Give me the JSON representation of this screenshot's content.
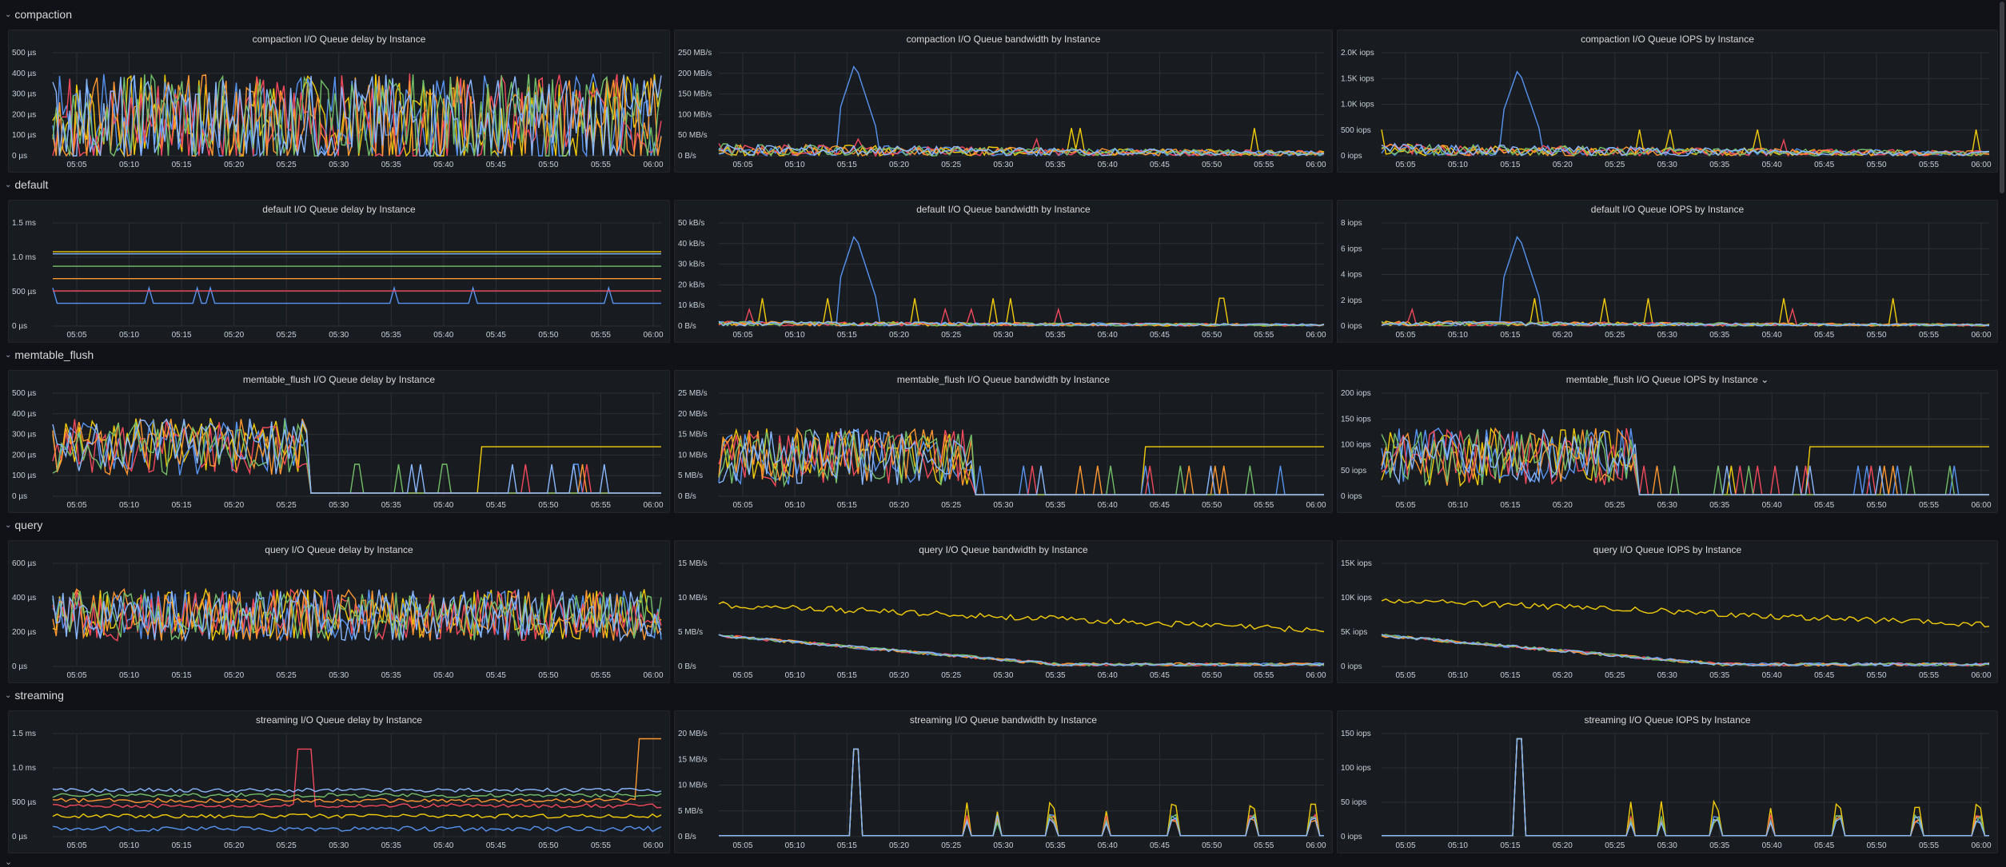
{
  "dashboard": {
    "colors": {
      "background": "#111217",
      "panel": "#181b1f",
      "grid": "#2c2f35",
      "axis_text": "#c7d0d9",
      "series": [
        "#f2cc0c",
        "#5794f2",
        "#f2495c",
        "#ff9830",
        "#73bf69",
        "#8ab8ff",
        "#b877d9",
        "#fade2a",
        "#37872d",
        "#c4162a"
      ]
    },
    "x_ticks": [
      "05:05",
      "05:10",
      "05:15",
      "05:20",
      "05:25",
      "05:30",
      "05:35",
      "05:40",
      "05:45",
      "05:50",
      "05:55",
      "06:00"
    ],
    "rows": [
      {
        "title": "compaction",
        "panels": [
          {
            "title": "compaction I/O Queue delay by Instance",
            "kind": "delay",
            "y_ticks": [
              "0 µs",
              "100 µs",
              "200 µs",
              "300 µs",
              "400 µs",
              "500 µs"
            ],
            "y_max": 500,
            "shape": "noisy",
            "level": 0.35,
            "amp": 0.9
          },
          {
            "title": "compaction I/O Queue bandwidth by Instance",
            "kind": "bandwidth",
            "y_ticks": [
              "0 B/s",
              "50 MB/s",
              "100 MB/s",
              "150 MB/s",
              "200 MB/s",
              "250 MB/s"
            ],
            "y_max": 250,
            "shape": "spiky",
            "level": 0.12,
            "amp": 0.9
          },
          {
            "title": "compaction I/O Queue IOPS by Instance",
            "kind": "iops",
            "y_ticks": [
              "0 iops",
              "500 iops",
              "1.0K iops",
              "1.5K iops",
              "2.0K iops"
            ],
            "y_max": 2000,
            "shape": "spiky",
            "level": 0.12,
            "amp": 0.85
          }
        ]
      },
      {
        "title": "default",
        "panels": [
          {
            "title": "default I/O Queue delay by Instance",
            "kind": "delay",
            "y_ticks": [
              "0 µs",
              "500 µs",
              "1.0 ms",
              "1.5 ms"
            ],
            "y_max": 1500,
            "shape": "flat",
            "level": 0.3,
            "amp": 0.5
          },
          {
            "title": "default I/O Queue bandwidth by Instance",
            "kind": "bandwidth",
            "y_ticks": [
              "0 B/s",
              "10 kB/s",
              "20 kB/s",
              "30 kB/s",
              "40 kB/s",
              "50 kB/s"
            ],
            "y_max": 50,
            "shape": "spiky",
            "level": 0.05,
            "amp": 0.9
          },
          {
            "title": "default I/O Queue IOPS by Instance",
            "kind": "iops",
            "y_ticks": [
              "0 iops",
              "2 iops",
              "4 iops",
              "6 iops",
              "8 iops"
            ],
            "y_max": 8,
            "shape": "spiky",
            "level": 0.05,
            "amp": 0.9
          }
        ]
      },
      {
        "title": "memtable_flush",
        "panels": [
          {
            "title": "memtable_flush I/O Queue delay by Instance",
            "kind": "delay",
            "y_ticks": [
              "0 µs",
              "100 µs",
              "200 µs",
              "300 µs",
              "400 µs",
              "500 µs"
            ],
            "y_max": 500,
            "shape": "burst",
            "level": 0.2,
            "amp": 0.8
          },
          {
            "title": "memtable_flush I/O Queue bandwidth by Instance",
            "kind": "bandwidth",
            "y_ticks": [
              "0 B/s",
              "5 MB/s",
              "10 MB/s",
              "15 MB/s",
              "20 MB/s",
              "25 MB/s"
            ],
            "y_max": 25,
            "shape": "burst",
            "level": 0.1,
            "amp": 0.8
          },
          {
            "title": "memtable_flush I/O Queue IOPS by Instance ⌄",
            "kind": "iops",
            "y_ticks": [
              "0 iops",
              "50 iops",
              "100 iops",
              "150 iops",
              "200 iops"
            ],
            "y_max": 200,
            "shape": "burst",
            "level": 0.1,
            "amp": 0.8
          }
        ]
      },
      {
        "title": "query",
        "panels": [
          {
            "title": "query I/O Queue delay by Instance",
            "kind": "delay",
            "y_ticks": [
              "0 µs",
              "200 µs",
              "400 µs",
              "600 µs"
            ],
            "y_max": 600,
            "shape": "dense",
            "level": 0.5,
            "amp": 0.5
          },
          {
            "title": "query I/O Queue bandwidth by Instance",
            "kind": "bandwidth",
            "y_ticks": [
              "0 B/s",
              "5 MB/s",
              "10 MB/s",
              "15 MB/s"
            ],
            "y_max": 15,
            "shape": "trend",
            "level": 0.6,
            "amp": 0.2
          },
          {
            "title": "query I/O Queue IOPS by Instance",
            "kind": "iops",
            "y_ticks": [
              "0 iops",
              "5K iops",
              "10K iops",
              "15K iops"
            ],
            "y_max": 15000,
            "shape": "trend",
            "level": 0.65,
            "amp": 0.2
          }
        ]
      },
      {
        "title": "streaming",
        "panels": [
          {
            "title": "streaming I/O Queue delay by Instance",
            "kind": "delay",
            "y_ticks": [
              "0 µs",
              "500 µs",
              "1.0 ms",
              "1.5 ms"
            ],
            "y_max": 1500,
            "shape": "steps",
            "level": 0.25,
            "amp": 0.5
          },
          {
            "title": "streaming I/O Queue bandwidth by Instance",
            "kind": "bandwidth",
            "y_ticks": [
              "0 B/s",
              "5 MB/s",
              "10 MB/s",
              "15 MB/s",
              "20 MB/s"
            ],
            "y_max": 20,
            "shape": "pulses",
            "level": 0.02,
            "amp": 0.85
          },
          {
            "title": "streaming I/O Queue IOPS by Instance",
            "kind": "iops",
            "y_ticks": [
              "0 iops",
              "50 iops",
              "100 iops",
              "150 iops"
            ],
            "y_max": 150,
            "shape": "pulses",
            "level": 0.02,
            "amp": 0.95
          }
        ]
      }
    ],
    "collapsed_row_label": "⌄"
  }
}
